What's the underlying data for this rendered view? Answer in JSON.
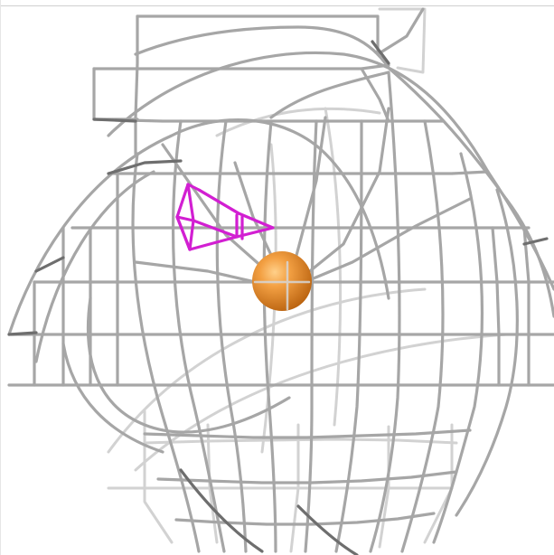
{
  "scene": {
    "background": "#ffffff",
    "mesh_color_light": "#d2d2d2",
    "mesh_color_mid": "#a6a6a6",
    "mesh_color_dark": "#6e6e6e",
    "ligand_color": "#d21fd2",
    "atom_color": "#f0922b",
    "atom_highlight": "#f8b25a",
    "atom_shade": "#c26a10"
  }
}
